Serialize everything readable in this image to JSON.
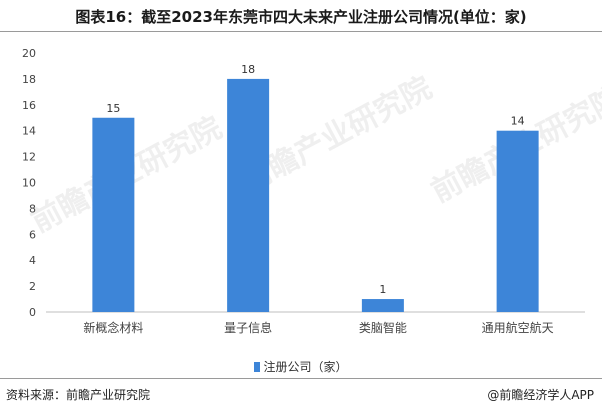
{
  "title": "图表16：截至2023年东莞市四大未来产业注册公司情况(单位：家)",
  "footer": {
    "source": "资料来源：前瞻产业研究院",
    "credit": "@前瞻经济学人APP"
  },
  "watermark": "前瞻产业研究院",
  "chart_data": {
    "type": "bar",
    "categories": [
      "新概念材料",
      "量子信息",
      "类脑智能",
      "通用航空航天"
    ],
    "series": [
      {
        "name": "注册公司（家）",
        "values": [
          15,
          18,
          1,
          14
        ],
        "color": "#3d85d8"
      }
    ],
    "ylim": [
      0,
      20
    ],
    "yticks": [
      0,
      2,
      4,
      6,
      8,
      10,
      12,
      14,
      16,
      18,
      20
    ],
    "grid": false,
    "legend_position": "bottom"
  }
}
